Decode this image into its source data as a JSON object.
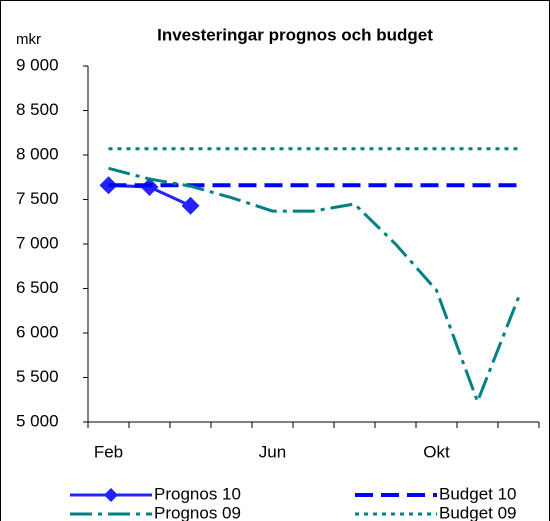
{
  "chart_data": {
    "type": "line",
    "title": "Investeringar prognos och budget",
    "y_label": "mkr",
    "categories": [
      "Feb",
      null,
      null,
      null,
      "Jun",
      null,
      null,
      null,
      "Okt",
      null,
      null
    ],
    "ylim": [
      5000,
      9000
    ],
    "yticks": [
      {
        "value": 5000,
        "label": "5 000"
      },
      {
        "value": 5500,
        "label": "5 500"
      },
      {
        "value": 6000,
        "label": "6 000"
      },
      {
        "value": 6500,
        "label": "6 500"
      },
      {
        "value": 7000,
        "label": "7 000"
      },
      {
        "value": 7500,
        "label": "7 500"
      },
      {
        "value": 8000,
        "label": "8 000"
      },
      {
        "value": 8500,
        "label": "8 500"
      },
      {
        "value": 9000,
        "label": "9 000"
      }
    ],
    "legend": "bottom",
    "series": [
      {
        "name": "Prognos 10",
        "color": "#2323ff",
        "style": "solid",
        "marker": "diamond",
        "values": [
          7660,
          7640,
          7430,
          null,
          null,
          null,
          null,
          null,
          null,
          null,
          null
        ]
      },
      {
        "name": "Budget 10",
        "color": "#0000ff",
        "style": "dash",
        "values": [
          7660,
          7660,
          7660,
          7660,
          7660,
          7660,
          7660,
          7660,
          7660,
          7660,
          7660
        ]
      },
      {
        "name": "Prognos 09",
        "color": "#008080",
        "style": "dashdot",
        "values": [
          7850,
          7730,
          7650,
          7520,
          7370,
          7370,
          7450,
          7000,
          6480,
          5230,
          6400
        ]
      },
      {
        "name": "Budget 09",
        "color": "#008080",
        "style": "dot",
        "values": [
          8070,
          8070,
          8070,
          8070,
          8070,
          8070,
          8070,
          8070,
          8070,
          8070,
          8070
        ]
      }
    ]
  }
}
